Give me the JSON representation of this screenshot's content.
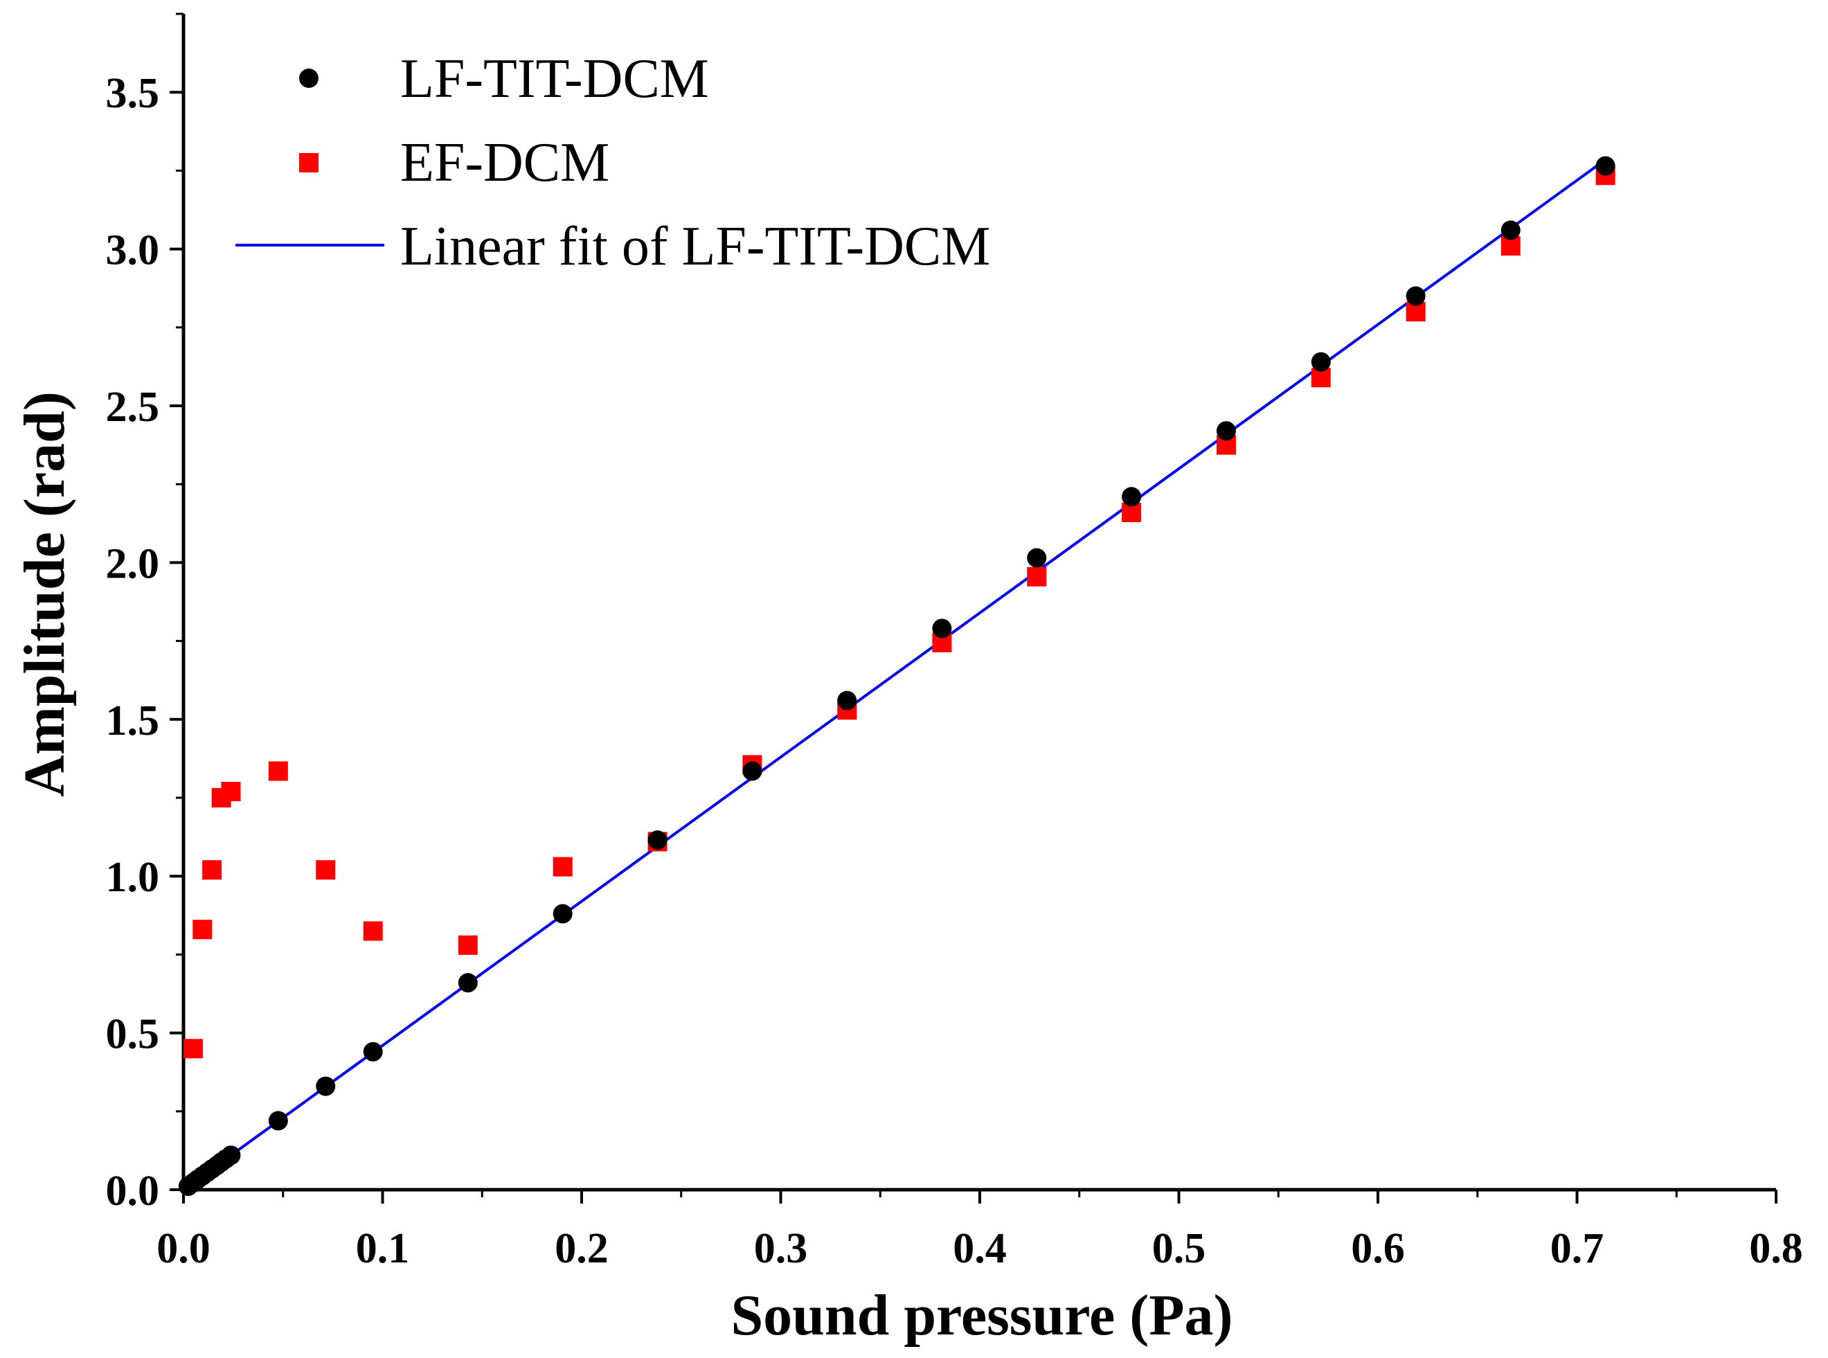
{
  "colors": {
    "series_lf": "#000000",
    "series_ef": "#ff0000",
    "fit_line": "#0000ee",
    "axis": "#000000",
    "background": "#ffffff"
  },
  "chart_data": {
    "type": "scatter",
    "title": "",
    "xlabel": "Sound pressure (Pa)",
    "ylabel": "Amplitude (rad)",
    "xlim": [
      0.0,
      0.8
    ],
    "ylim": [
      0.0,
      3.75
    ],
    "xticks": [
      0.0,
      0.1,
      0.2,
      0.3,
      0.4,
      0.5,
      0.6,
      0.7,
      0.8
    ],
    "xtick_labels": [
      "0.0",
      "0.1",
      "0.2",
      "0.3",
      "0.4",
      "0.5",
      "0.6",
      "0.7",
      "0.8"
    ],
    "yticks": [
      0.0,
      0.5,
      1.0,
      1.5,
      2.0,
      2.5,
      3.0,
      3.5
    ],
    "ytick_labels": [
      "0.0",
      "0.5",
      "1.0",
      "1.5",
      "2.0",
      "2.5",
      "3.0",
      "3.5"
    ],
    "grid": false,
    "legend_position": "top-left",
    "series": [
      {
        "name": "LF-TIT-DCM",
        "marker": "circle",
        "color": "#000000",
        "x": [
          0.0024,
          0.0048,
          0.0071,
          0.0095,
          0.0119,
          0.0143,
          0.0167,
          0.019,
          0.0214,
          0.0238,
          0.0476,
          0.0714,
          0.0952,
          0.1429,
          0.1905,
          0.2381,
          0.2857,
          0.3333,
          0.381,
          0.4286,
          0.4762,
          0.5238,
          0.5714,
          0.619,
          0.6667,
          0.7143
        ],
        "y": [
          0.011,
          0.022,
          0.033,
          0.044,
          0.055,
          0.066,
          0.077,
          0.088,
          0.099,
          0.11,
          0.22,
          0.33,
          0.44,
          0.66,
          0.88,
          1.115,
          1.335,
          1.56,
          1.79,
          2.015,
          2.21,
          2.42,
          2.64,
          2.85,
          3.06,
          3.265
        ]
      },
      {
        "name": "EF-DCM",
        "marker": "square",
        "color": "#ff0000",
        "x": [
          0.0048,
          0.0095,
          0.0143,
          0.019,
          0.0238,
          0.0476,
          0.0714,
          0.0952,
          0.1429,
          0.1905,
          0.2381,
          0.2857,
          0.3333,
          0.381,
          0.4286,
          0.4762,
          0.5238,
          0.5714,
          0.619,
          0.6667,
          0.7143
        ],
        "y": [
          0.45,
          0.83,
          1.02,
          1.25,
          1.27,
          1.335,
          1.02,
          0.825,
          0.78,
          1.03,
          1.11,
          1.355,
          1.53,
          1.745,
          1.955,
          2.16,
          2.375,
          2.59,
          2.8,
          3.01,
          3.235
        ]
      },
      {
        "name": "Linear fit of LF-TIT-DCM",
        "type": "line",
        "color": "#0000ee",
        "x": [
          0.0,
          0.7143
        ],
        "y": [
          0.0,
          3.285
        ]
      }
    ],
    "legend": [
      {
        "label": "LF-TIT-DCM",
        "symbol": "circle"
      },
      {
        "label": "EF-DCM",
        "symbol": "square"
      },
      {
        "label": "Linear fit of LF-TIT-DCM",
        "symbol": "line"
      }
    ]
  }
}
